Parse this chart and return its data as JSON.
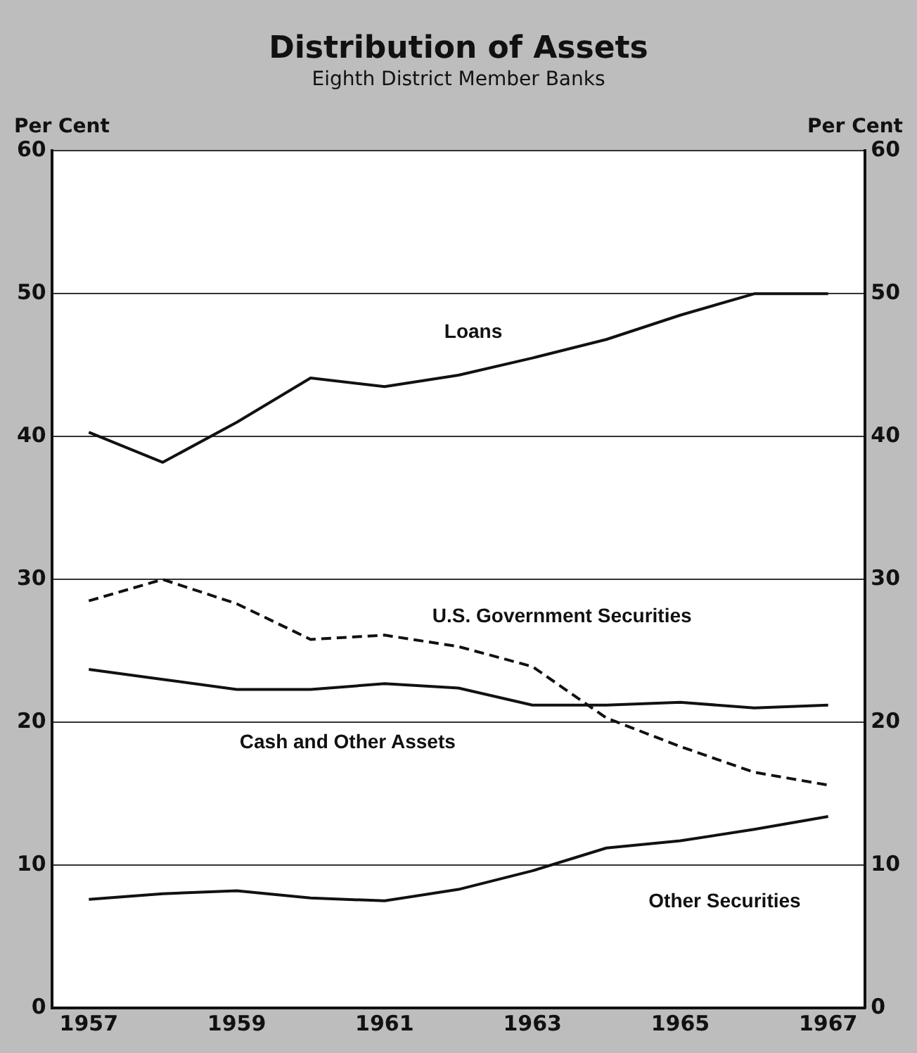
{
  "chart_data": {
    "type": "line",
    "title": "Distribution of Assets",
    "subtitle": "Eighth District Member Banks",
    "ylabel": "Per Cent",
    "y2label": "Per Cent",
    "categories": [
      "1957",
      null,
      "1959",
      null,
      "1961",
      null,
      "1963",
      null,
      "1965",
      null,
      "1967"
    ],
    "series": [
      {
        "name": "Loans",
        "color": "#111111",
        "values": [
          40.3,
          38.2,
          41,
          44.1,
          43.5,
          44.3,
          45.5,
          46.8,
          48.5,
          50,
          50
        ]
      },
      {
        "name": "U.S. Government Securities",
        "color": "#111111",
        "line_style": "dashed",
        "values": [
          28.5,
          30,
          28.3,
          25.8,
          26.1,
          25.3,
          23.9,
          20.3,
          18.3,
          16.5,
          15.6
        ]
      },
      {
        "name": "Cash and Other Assets",
        "color": "#111111",
        "values": [
          23.7,
          23,
          22.3,
          22.3,
          22.7,
          22.4,
          21.2,
          21.2,
          21.4,
          21,
          21.2
        ]
      },
      {
        "name": "Other Securities",
        "color": "#111111",
        "values": [
          7.6,
          8,
          8.2,
          7.7,
          7.5,
          8.3,
          9.6,
          11.2,
          11.7,
          12.5,
          13.4
        ]
      }
    ],
    "ylim": [
      0,
      60
    ],
    "yticks": [
      0,
      10,
      20,
      30,
      40,
      50,
      60
    ],
    "y2lim": [
      0,
      60
    ],
    "y2ticks": [
      0,
      10,
      20,
      30,
      40,
      50,
      60
    ],
    "grid": "y",
    "legend": false,
    "marker": "none"
  }
}
